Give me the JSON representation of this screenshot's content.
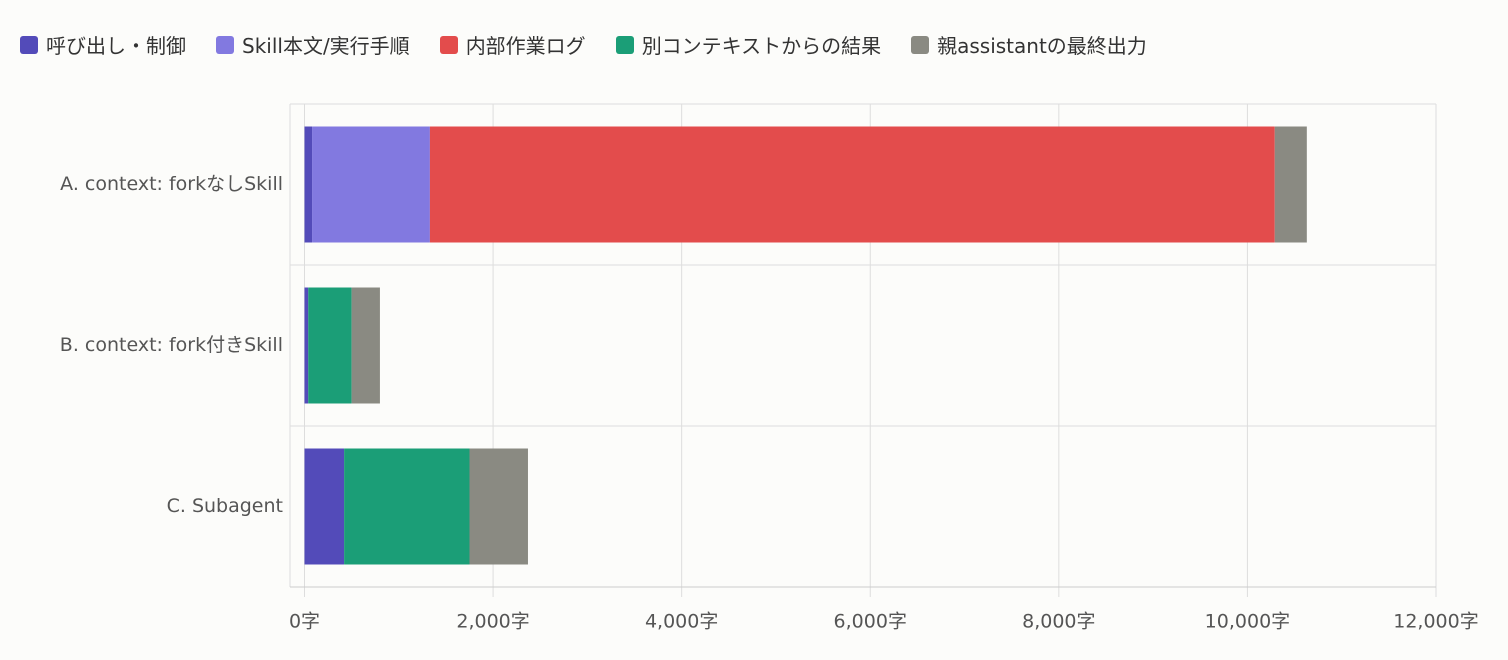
{
  "chart_data": {
    "type": "stacked-barh",
    "categories": [
      "A. context: forkなしSkill",
      "B. context: fork付きSkill",
      "C. Subagent"
    ],
    "series": [
      {
        "name": "呼び出し・制御",
        "color": "#534bb9",
        "values": [
          80,
          40,
          420
        ]
      },
      {
        "name": "Skill本文/実行手順",
        "color": "#8279e0",
        "values": [
          1250,
          0,
          0
        ]
      },
      {
        "name": "内部作業ログ",
        "color": "#e34c4c",
        "values": [
          8960,
          0,
          0
        ]
      },
      {
        "name": "別コンテキストからの結果",
        "color": "#1b9e77",
        "values": [
          0,
          460,
          1330
        ]
      },
      {
        "name": "親assistantの最終出力",
        "color": "#8a8a82",
        "values": [
          340,
          300,
          620
        ]
      }
    ],
    "xlim": [
      0,
      12000
    ],
    "xticks": [
      {
        "value": 0,
        "label": "0字"
      },
      {
        "value": 2000,
        "label": "2,000字"
      },
      {
        "value": 4000,
        "label": "4,000字"
      },
      {
        "value": 6000,
        "label": "6,000字"
      },
      {
        "value": 8000,
        "label": "8,000字"
      },
      {
        "value": 10000,
        "label": "10,000字"
      },
      {
        "value": 12000,
        "label": "12,000字"
      }
    ],
    "grid": true,
    "legend": "top"
  }
}
